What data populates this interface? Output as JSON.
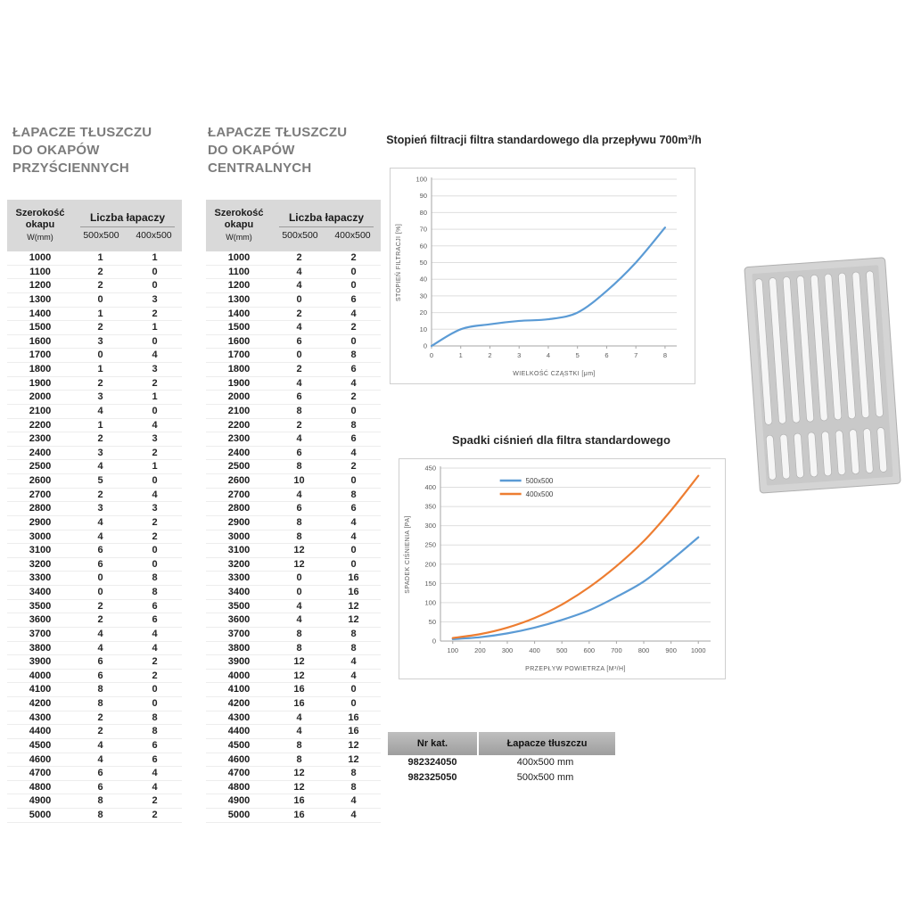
{
  "page": {
    "background": "#ffffff"
  },
  "tables": {
    "wall": {
      "title_lines": [
        "ŁAPACZE TŁUSZCZU",
        "DO OKAPÓW",
        "PRZYŚCIENNYCH"
      ],
      "header": {
        "col1": [
          "Szerokość",
          "okapu",
          "W(mm)"
        ],
        "group": "Liczba łapaczy",
        "subcols": [
          "500x500",
          "400x500"
        ]
      },
      "rows": [
        [
          1000,
          1,
          1
        ],
        [
          1100,
          2,
          0
        ],
        [
          1200,
          2,
          0
        ],
        [
          1300,
          0,
          3
        ],
        [
          1400,
          1,
          2
        ],
        [
          1500,
          2,
          1
        ],
        [
          1600,
          3,
          0
        ],
        [
          1700,
          0,
          4
        ],
        [
          1800,
          1,
          3
        ],
        [
          1900,
          2,
          2
        ],
        [
          2000,
          3,
          1
        ],
        [
          2100,
          4,
          0
        ],
        [
          2200,
          1,
          4
        ],
        [
          2300,
          2,
          3
        ],
        [
          2400,
          3,
          2
        ],
        [
          2500,
          4,
          1
        ],
        [
          2600,
          5,
          0
        ],
        [
          2700,
          2,
          4
        ],
        [
          2800,
          3,
          3
        ],
        [
          2900,
          4,
          2
        ],
        [
          3000,
          4,
          2
        ],
        [
          3100,
          6,
          0
        ],
        [
          3200,
          6,
          0
        ],
        [
          3300,
          0,
          8
        ],
        [
          3400,
          0,
          8
        ],
        [
          3500,
          2,
          6
        ],
        [
          3600,
          2,
          6
        ],
        [
          3700,
          4,
          4
        ],
        [
          3800,
          4,
          4
        ],
        [
          3900,
          6,
          2
        ],
        [
          4000,
          6,
          2
        ],
        [
          4100,
          8,
          0
        ],
        [
          4200,
          8,
          0
        ],
        [
          4300,
          2,
          8
        ],
        [
          4400,
          2,
          8
        ],
        [
          4500,
          4,
          6
        ],
        [
          4600,
          4,
          6
        ],
        [
          4700,
          6,
          4
        ],
        [
          4800,
          6,
          4
        ],
        [
          4900,
          8,
          2
        ],
        [
          5000,
          8,
          2
        ]
      ]
    },
    "central": {
      "title_lines": [
        "ŁAPACZE TŁUSZCZU",
        "DO OKAPÓW",
        "CENTRALNYCH"
      ],
      "header": {
        "col1": [
          "Szerokość",
          "okapu",
          "W(mm)"
        ],
        "group": "Liczba łapaczy",
        "subcols": [
          "500x500",
          "400x500"
        ]
      },
      "rows": [
        [
          1000,
          2,
          2
        ],
        [
          1100,
          4,
          0
        ],
        [
          1200,
          4,
          0
        ],
        [
          1300,
          0,
          6
        ],
        [
          1400,
          2,
          4
        ],
        [
          1500,
          4,
          2
        ],
        [
          1600,
          6,
          0
        ],
        [
          1700,
          0,
          8
        ],
        [
          1800,
          2,
          6
        ],
        [
          1900,
          4,
          4
        ],
        [
          2000,
          6,
          2
        ],
        [
          2100,
          8,
          0
        ],
        [
          2200,
          2,
          8
        ],
        [
          2300,
          4,
          6
        ],
        [
          2400,
          6,
          4
        ],
        [
          2500,
          8,
          2
        ],
        [
          2600,
          10,
          0
        ],
        [
          2700,
          4,
          8
        ],
        [
          2800,
          6,
          6
        ],
        [
          2900,
          8,
          4
        ],
        [
          3000,
          8,
          4
        ],
        [
          3100,
          12,
          0
        ],
        [
          3200,
          12,
          0
        ],
        [
          3300,
          0,
          16
        ],
        [
          3400,
          0,
          16
        ],
        [
          3500,
          4,
          12
        ],
        [
          3600,
          4,
          12
        ],
        [
          3700,
          8,
          8
        ],
        [
          3800,
          8,
          8
        ],
        [
          3900,
          12,
          4
        ],
        [
          4000,
          12,
          4
        ],
        [
          4100,
          16,
          0
        ],
        [
          4200,
          16,
          0
        ],
        [
          4300,
          4,
          16
        ],
        [
          4400,
          4,
          16
        ],
        [
          4500,
          8,
          12
        ],
        [
          4600,
          8,
          12
        ],
        [
          4700,
          12,
          8
        ],
        [
          4800,
          12,
          8
        ],
        [
          4900,
          16,
          4
        ],
        [
          5000,
          16,
          4
        ]
      ]
    }
  },
  "chart_data": [
    {
      "type": "line",
      "title": "Stopień filtracji filtra standardowego dla przepływu 700m³/h",
      "xlabel": "WIELKOŚĆ CZĄSTKI [μm]",
      "ylabel": "STOPIEŃ FILTRACJI [%]",
      "x": [
        0,
        1,
        2,
        3,
        4,
        5,
        6,
        7,
        8
      ],
      "series": [
        {
          "name": "stopień filtracji",
          "color": "#5b9bd5",
          "values": [
            0,
            10,
            13,
            15,
            16,
            20,
            33,
            50,
            71
          ]
        }
      ],
      "ylim": [
        0,
        100
      ],
      "ytick": 10,
      "xlim": [
        0,
        8.4
      ],
      "xticks": [
        0,
        1,
        2,
        3,
        4,
        5,
        6,
        7,
        8
      ],
      "legend": false,
      "grid": true
    },
    {
      "type": "line",
      "title": "Spadki ciśnień dla filtra standardowego",
      "xlabel": "PRZEPŁYW POWIETRZA [M³/H]",
      "ylabel": "SPADEK CIŚNIENIA [PA]",
      "x": [
        100,
        200,
        300,
        400,
        500,
        600,
        700,
        800,
        900,
        1000
      ],
      "series": [
        {
          "name": "500x500",
          "color": "#5b9bd5",
          "values": [
            5,
            10,
            20,
            35,
            55,
            80,
            115,
            155,
            210,
            270
          ]
        },
        {
          "name": "400x500",
          "color": "#ed7d31",
          "values": [
            8,
            18,
            35,
            60,
            95,
            140,
            195,
            260,
            340,
            430
          ]
        }
      ],
      "ylim": [
        0,
        450
      ],
      "ytick": 50,
      "xlim": [
        55,
        1045
      ],
      "xticks": [
        100,
        200,
        300,
        400,
        500,
        600,
        700,
        800,
        900,
        1000
      ],
      "legend": true,
      "grid": true
    }
  ],
  "catalog": {
    "headers": [
      "Nr kat.",
      "Łapacze tłuszczu"
    ],
    "rows": [
      [
        "982324050",
        "400x500 mm"
      ],
      [
        "982325050",
        "500x500 mm"
      ]
    ]
  },
  "illustration": {
    "name": "grease-filter",
    "frame_color": "#d4d4d4",
    "slat_color": "#f5f5f5"
  }
}
